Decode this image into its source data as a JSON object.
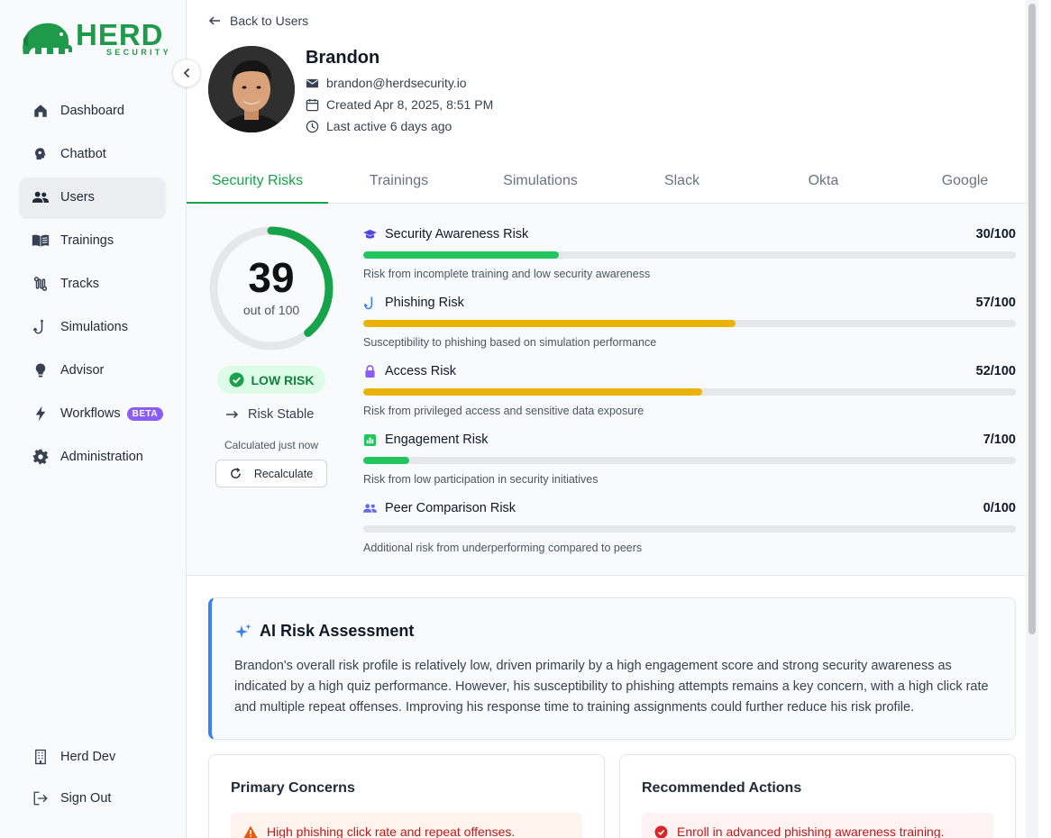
{
  "brand": {
    "name": "HERD",
    "subtitle": "SECURITY",
    "color": "#1f9a4a"
  },
  "sidebar": {
    "items": [
      {
        "label": "Dashboard",
        "icon": "home-icon"
      },
      {
        "label": "Chatbot",
        "icon": "brain-icon"
      },
      {
        "label": "Users",
        "icon": "users-icon",
        "active": true
      },
      {
        "label": "Trainings",
        "icon": "book-icon"
      },
      {
        "label": "Tracks",
        "icon": "route-icon"
      },
      {
        "label": "Simulations",
        "icon": "phishing-hook-icon"
      },
      {
        "label": "Advisor",
        "icon": "lightbulb-icon"
      },
      {
        "label": "Workflows",
        "icon": "bolt-icon",
        "badge": "BETA"
      },
      {
        "label": "Administration",
        "icon": "gear-icon"
      }
    ],
    "bottom": [
      {
        "label": "Herd Dev",
        "icon": "building-icon"
      },
      {
        "label": "Sign Out",
        "icon": "logout-icon"
      }
    ]
  },
  "header": {
    "back_label": "Back to Users"
  },
  "user": {
    "name": "Brandon",
    "email": "brandon@herdsecurity.io",
    "created": "Created Apr 8, 2025, 8:51 PM",
    "last_active": "Last active 6 days ago"
  },
  "tabs": [
    {
      "label": "Security Risks",
      "active": true
    },
    {
      "label": "Trainings"
    },
    {
      "label": "Simulations"
    },
    {
      "label": "Slack"
    },
    {
      "label": "Okta"
    },
    {
      "label": "Google"
    }
  ],
  "overall": {
    "score": "39",
    "score_value": 39,
    "max": 100,
    "out_of": "out of 100",
    "level": "LOW RISK",
    "trend": "Risk Stable",
    "calculated": "Calculated just now",
    "recalculate_label": "Recalculate"
  },
  "factors": [
    {
      "name": "Security Awareness Risk",
      "score": "30/100",
      "value": 30,
      "description": "Risk from incomplete training and low security awareness",
      "color": "#22c55e",
      "icon": "graduation-cap-icon",
      "icon_color": "#4f46e5"
    },
    {
      "name": "Phishing Risk",
      "score": "57/100",
      "value": 57,
      "description": "Susceptibility to phishing based on simulation performance",
      "color": "#eab308",
      "icon": "phishing-hook-icon",
      "icon_color": "#3b82f6"
    },
    {
      "name": "Access Risk",
      "score": "52/100",
      "value": 52,
      "description": "Risk from privileged access and sensitive data exposure",
      "color": "#eab308",
      "icon": "lock-icon",
      "icon_color": "#8b5cf6"
    },
    {
      "name": "Engagement Risk",
      "score": "7/100",
      "value": 7,
      "description": "Risk from low participation in security initiatives",
      "color": "#22c55e",
      "icon": "bar-chart-icon",
      "icon_color": "#22c55e"
    },
    {
      "name": "Peer Comparison Risk",
      "score": "0/100",
      "value": 0,
      "description": "Additional risk from underperforming compared to peers",
      "color": "#22c55e",
      "icon": "group-icon",
      "icon_color": "#6366f1"
    }
  ],
  "ai_assessment": {
    "title": "AI Risk Assessment",
    "body": "Brandon's overall risk profile is relatively low, driven primarily by a high engagement score and strong security awareness as indicated by a high quiz performance. However, his susceptibility to phishing attempts remains a key concern, with a high click rate and multiple repeat offenses. Improving his response time to training assignments could further reduce his risk profile."
  },
  "primary_concerns": {
    "title": "Primary Concerns",
    "items": [
      "High phishing click rate and repeat offenses."
    ]
  },
  "recommended_actions": {
    "title": "Recommended Actions",
    "items": [
      "Enroll in advanced phishing awareness training."
    ]
  },
  "colors": {
    "accent": "#16a34a",
    "gauge_track": "#e5e7eb",
    "ai_border": "#3b82f6"
  }
}
